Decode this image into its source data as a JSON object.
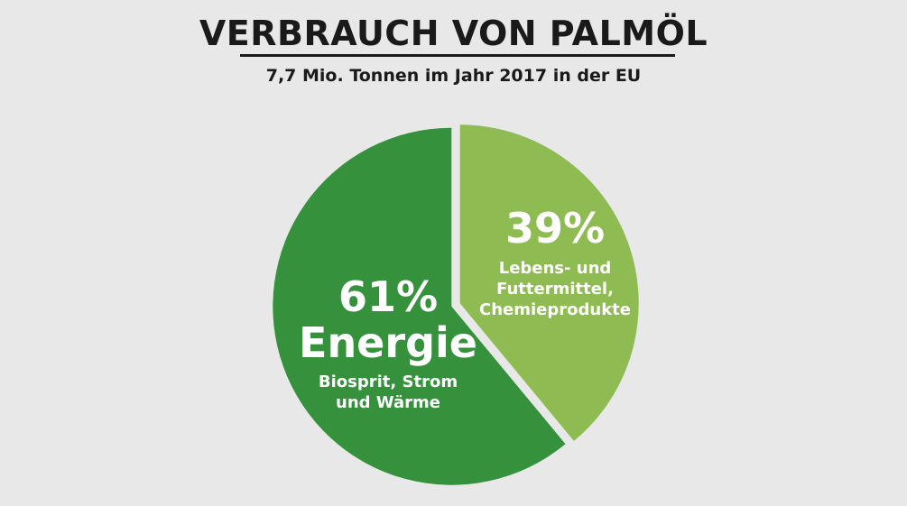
{
  "header": {
    "title": "VERBRAUCH VON PALMÖL",
    "subtitle": "7,7 Mio. Tonnen im Jahr 2017 in der EU"
  },
  "chart_data": {
    "type": "pie",
    "title": "VERBRAUCH VON PALMÖL",
    "subtitle": "7,7 Mio. Tonnen im Jahr 2017 in der EU",
    "slices": [
      {
        "key": "food",
        "value": 39,
        "percent_label": "39%",
        "label_lines": [
          "Lebens- und",
          "Futtermittel,",
          "Chemieprodukte"
        ],
        "color": "#8fbc52"
      },
      {
        "key": "energy",
        "value": 61,
        "percent_label": "61%",
        "name": "Energie",
        "label_lines": [
          "Biosprit, Strom",
          "und Wärme"
        ],
        "color": "#35913c"
      }
    ]
  }
}
